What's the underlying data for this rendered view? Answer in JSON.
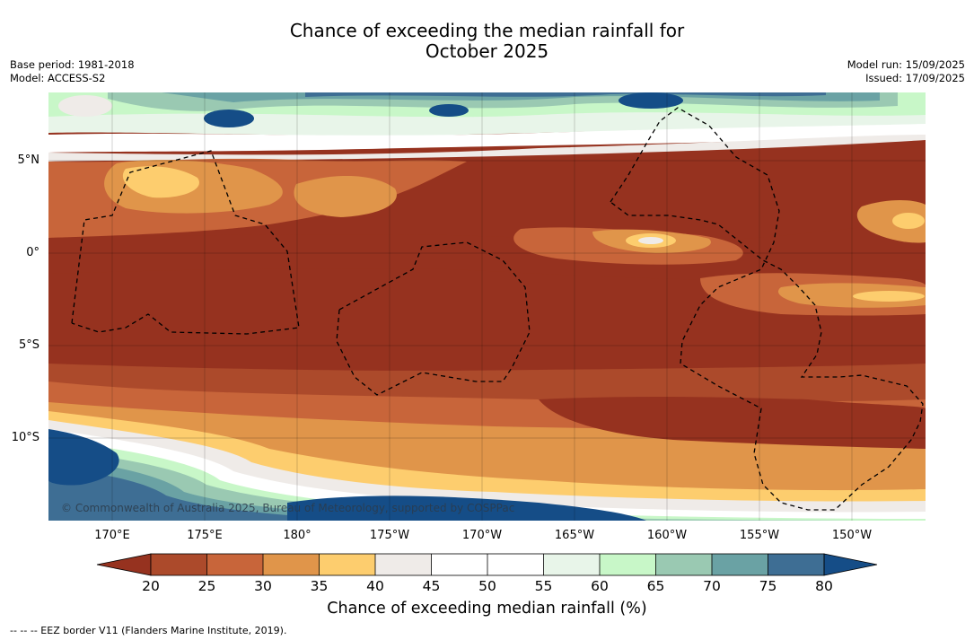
{
  "title_line1": "Chance of exceeding the median rainfall for",
  "title_line2": "October 2025",
  "meta_left": {
    "base_period": "Base period: 1981-2018",
    "model": "Model: ACCESS-S2"
  },
  "meta_right": {
    "model_run": "Model run: 15/09/2025",
    "issued": "Issued: 17/09/2025"
  },
  "map": {
    "lon_labels": [
      "170°E",
      "175°E",
      "180°",
      "175°W",
      "170°W",
      "165°W",
      "160°W",
      "155°W",
      "150°W"
    ],
    "lat_labels": [
      "5°N",
      "0°",
      "5°S",
      "10°S"
    ],
    "copyright": "© Commonwealth of Australia 2025, Bureau of Meteorology, supported by COSPPac",
    "ocean_border_style": "dashed"
  },
  "colorbar": {
    "ticks": [
      "20",
      "25",
      "30",
      "35",
      "40",
      "45",
      "50",
      "55",
      "60",
      "65",
      "70",
      "75",
      "80"
    ],
    "colors": [
      "#96321f",
      "#ac4a2b",
      "#c8653a",
      "#e0954a",
      "#fdcd6e",
      "#efebe8",
      "#ffffff",
      "#ffffff",
      "#e8f5e9",
      "#c8f7c8",
      "#9ac9b2",
      "#6aa2a4",
      "#3e6e94",
      "#154d87"
    ],
    "label": "Chance of exceeding median rainfall (%)"
  },
  "footer": "--  --  -- EEZ border V11 (Flanders Marine Institute, 2019)."
}
